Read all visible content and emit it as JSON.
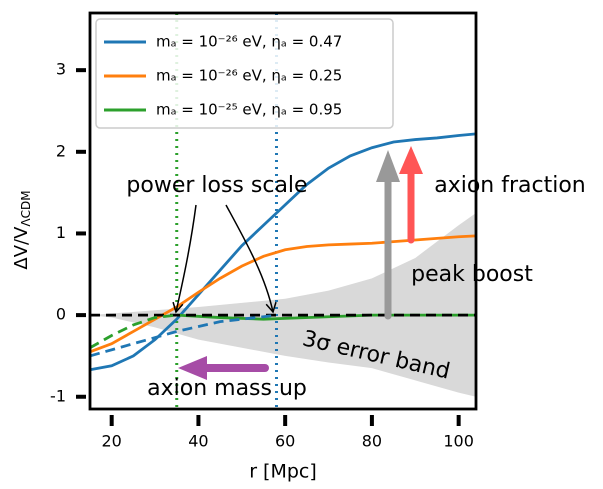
{
  "chart_data": {
    "type": "line",
    "xlabel": "r [Mpc]",
    "ylabel": "ΔV/V",
    "ylabel_sub": "ΛCDM",
    "xlim": [
      15,
      104
    ],
    "ylim": [
      -1.15,
      3.7
    ],
    "xticks": [
      20,
      40,
      60,
      80,
      100
    ],
    "yticks": [
      -1,
      0,
      1,
      2,
      3
    ],
    "band": {
      "color": "#d9d9d9",
      "x": [
        15,
        20,
        30,
        40,
        50,
        60,
        70,
        80,
        90,
        100,
        104
      ],
      "upper": [
        0,
        0.02,
        0.06,
        0.1,
        0.15,
        0.2,
        0.3,
        0.45,
        0.7,
        1.1,
        1.25
      ],
      "lower": [
        0,
        -0.03,
        -0.15,
        -0.3,
        -0.4,
        -0.5,
        -0.58,
        -0.65,
        -0.8,
        -0.95,
        -1.0
      ]
    },
    "series": [
      {
        "name": "mₐ = 10⁻²⁶ eV, ηₐ = 0.47",
        "color": "#1f77b4",
        "style": "solid",
        "x": [
          15,
          20,
          25,
          30,
          35,
          40,
          45,
          50,
          55,
          60,
          65,
          70,
          75,
          80,
          85,
          90,
          95,
          100,
          104
        ],
        "values": [
          -0.67,
          -0.62,
          -0.5,
          -0.3,
          -0.05,
          0.25,
          0.55,
          0.85,
          1.1,
          1.35,
          1.6,
          1.8,
          1.95,
          2.05,
          2.12,
          2.15,
          2.17,
          2.2,
          2.22
        ]
      },
      {
        "name": "mₐ = 10⁻²⁶ eV, ηₐ = 0.25",
        "color": "#ff7f0e",
        "style": "solid",
        "x": [
          15,
          20,
          25,
          30,
          35,
          40,
          45,
          50,
          55,
          60,
          65,
          70,
          75,
          80,
          85,
          90,
          95,
          100,
          104
        ],
        "values": [
          -0.45,
          -0.35,
          -0.2,
          -0.05,
          0.1,
          0.28,
          0.45,
          0.6,
          0.72,
          0.8,
          0.84,
          0.86,
          0.87,
          0.88,
          0.9,
          0.92,
          0.94,
          0.96,
          0.97
        ]
      },
      {
        "name": "mₐ = 10⁻²⁵ eV, ηₐ = 0.95",
        "color": "#2ca02c",
        "style": "solid",
        "x": [
          35,
          45,
          55,
          60,
          70,
          80,
          90,
          104
        ],
        "values": [
          0,
          -0.03,
          -0.05,
          -0.04,
          -0.02,
          0,
          0,
          0
        ]
      },
      {
        "color": "#000000",
        "style": "dashed",
        "x": [
          15,
          104
        ],
        "values": [
          0,
          0
        ]
      },
      {
        "color": "#1f77b4",
        "style": "dashed",
        "x": [
          15,
          25,
          35,
          45,
          55,
          58
        ],
        "values": [
          -0.5,
          -0.35,
          -0.2,
          -0.08,
          -0.02,
          0
        ]
      },
      {
        "color": "#2ca02c",
        "style": "dashed",
        "x": [
          15,
          20,
          25,
          30,
          35
        ],
        "values": [
          -0.4,
          -0.25,
          -0.12,
          -0.03,
          0
        ]
      }
    ],
    "vlines": [
      {
        "x": 35,
        "color": "#2ca02c"
      },
      {
        "x": 58,
        "color": "#1f77b4"
      }
    ],
    "annotations": [
      "power loss scale",
      "axion fraction",
      "peak boost",
      "3σ error band",
      "axion mass up"
    ]
  }
}
